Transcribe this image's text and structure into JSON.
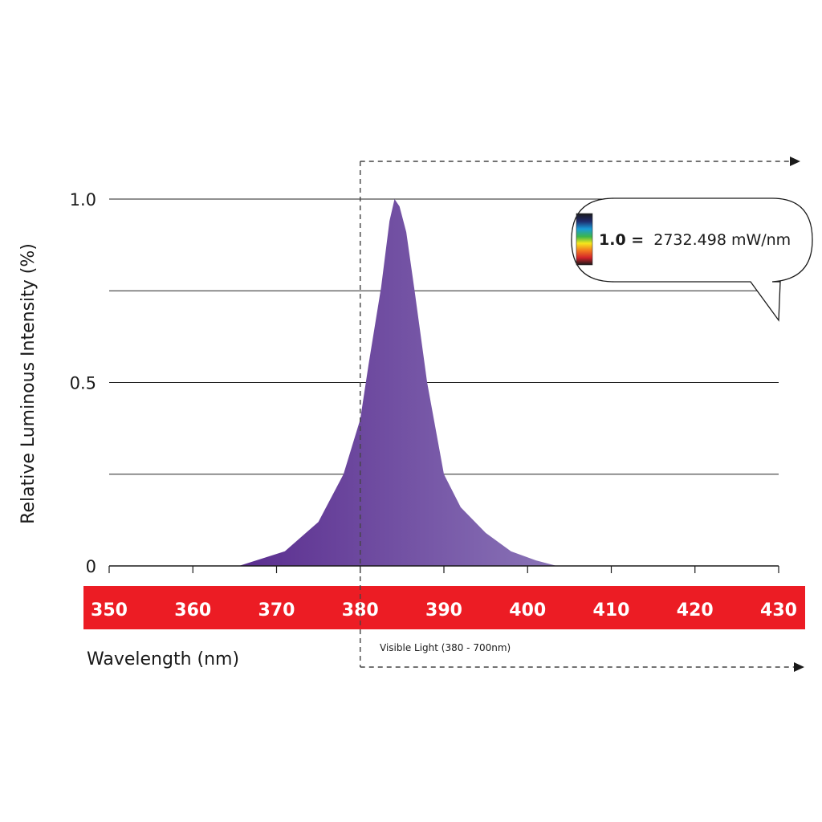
{
  "chart_data": {
    "type": "area",
    "ylabel": "Relative Luminous Intensity (%)",
    "xlabel": "Wavelength (nm)",
    "xlim": [
      350,
      430
    ],
    "ylim": [
      0,
      1.0
    ],
    "x_ticks": [
      "350",
      "360",
      "370",
      "380",
      "390",
      "400",
      "410",
      "420",
      "430"
    ],
    "y_ticks": [
      {
        "value": 0,
        "label": "0"
      },
      {
        "value": 0.5,
        "label": "0.5"
      },
      {
        "value": 1.0,
        "label": "1.0"
      }
    ],
    "gridlines": [
      0.25,
      0.5,
      0.75,
      1.0
    ],
    "series": [
      {
        "x": [
          365.5,
          371,
          375,
          378,
          380,
          381,
          382.5,
          383.5,
          384.1,
          384.7,
          385.5,
          386.5,
          388,
          390,
          392,
          395,
          398,
          401,
          403.5
        ],
        "values": [
          0,
          0.04,
          0.12,
          0.25,
          0.4,
          0.55,
          0.76,
          0.94,
          1.0,
          0.98,
          0.91,
          0.75,
          0.5,
          0.25,
          0.16,
          0.09,
          0.04,
          0.015,
          0
        ]
      }
    ],
    "colors": {
      "fill_left": "#5a2d8f",
      "fill_right": "#8a74b7",
      "band": "#ec1c24",
      "grid": "#222222"
    }
  },
  "visible_light_note": "Visible Light (380 - 700nm)",
  "visible_light_start": 380,
  "callout": {
    "value_label": "1.0 =",
    "value_text": "2732.498 mW/nm",
    "icon": "spectrum-colorbar-icon"
  }
}
